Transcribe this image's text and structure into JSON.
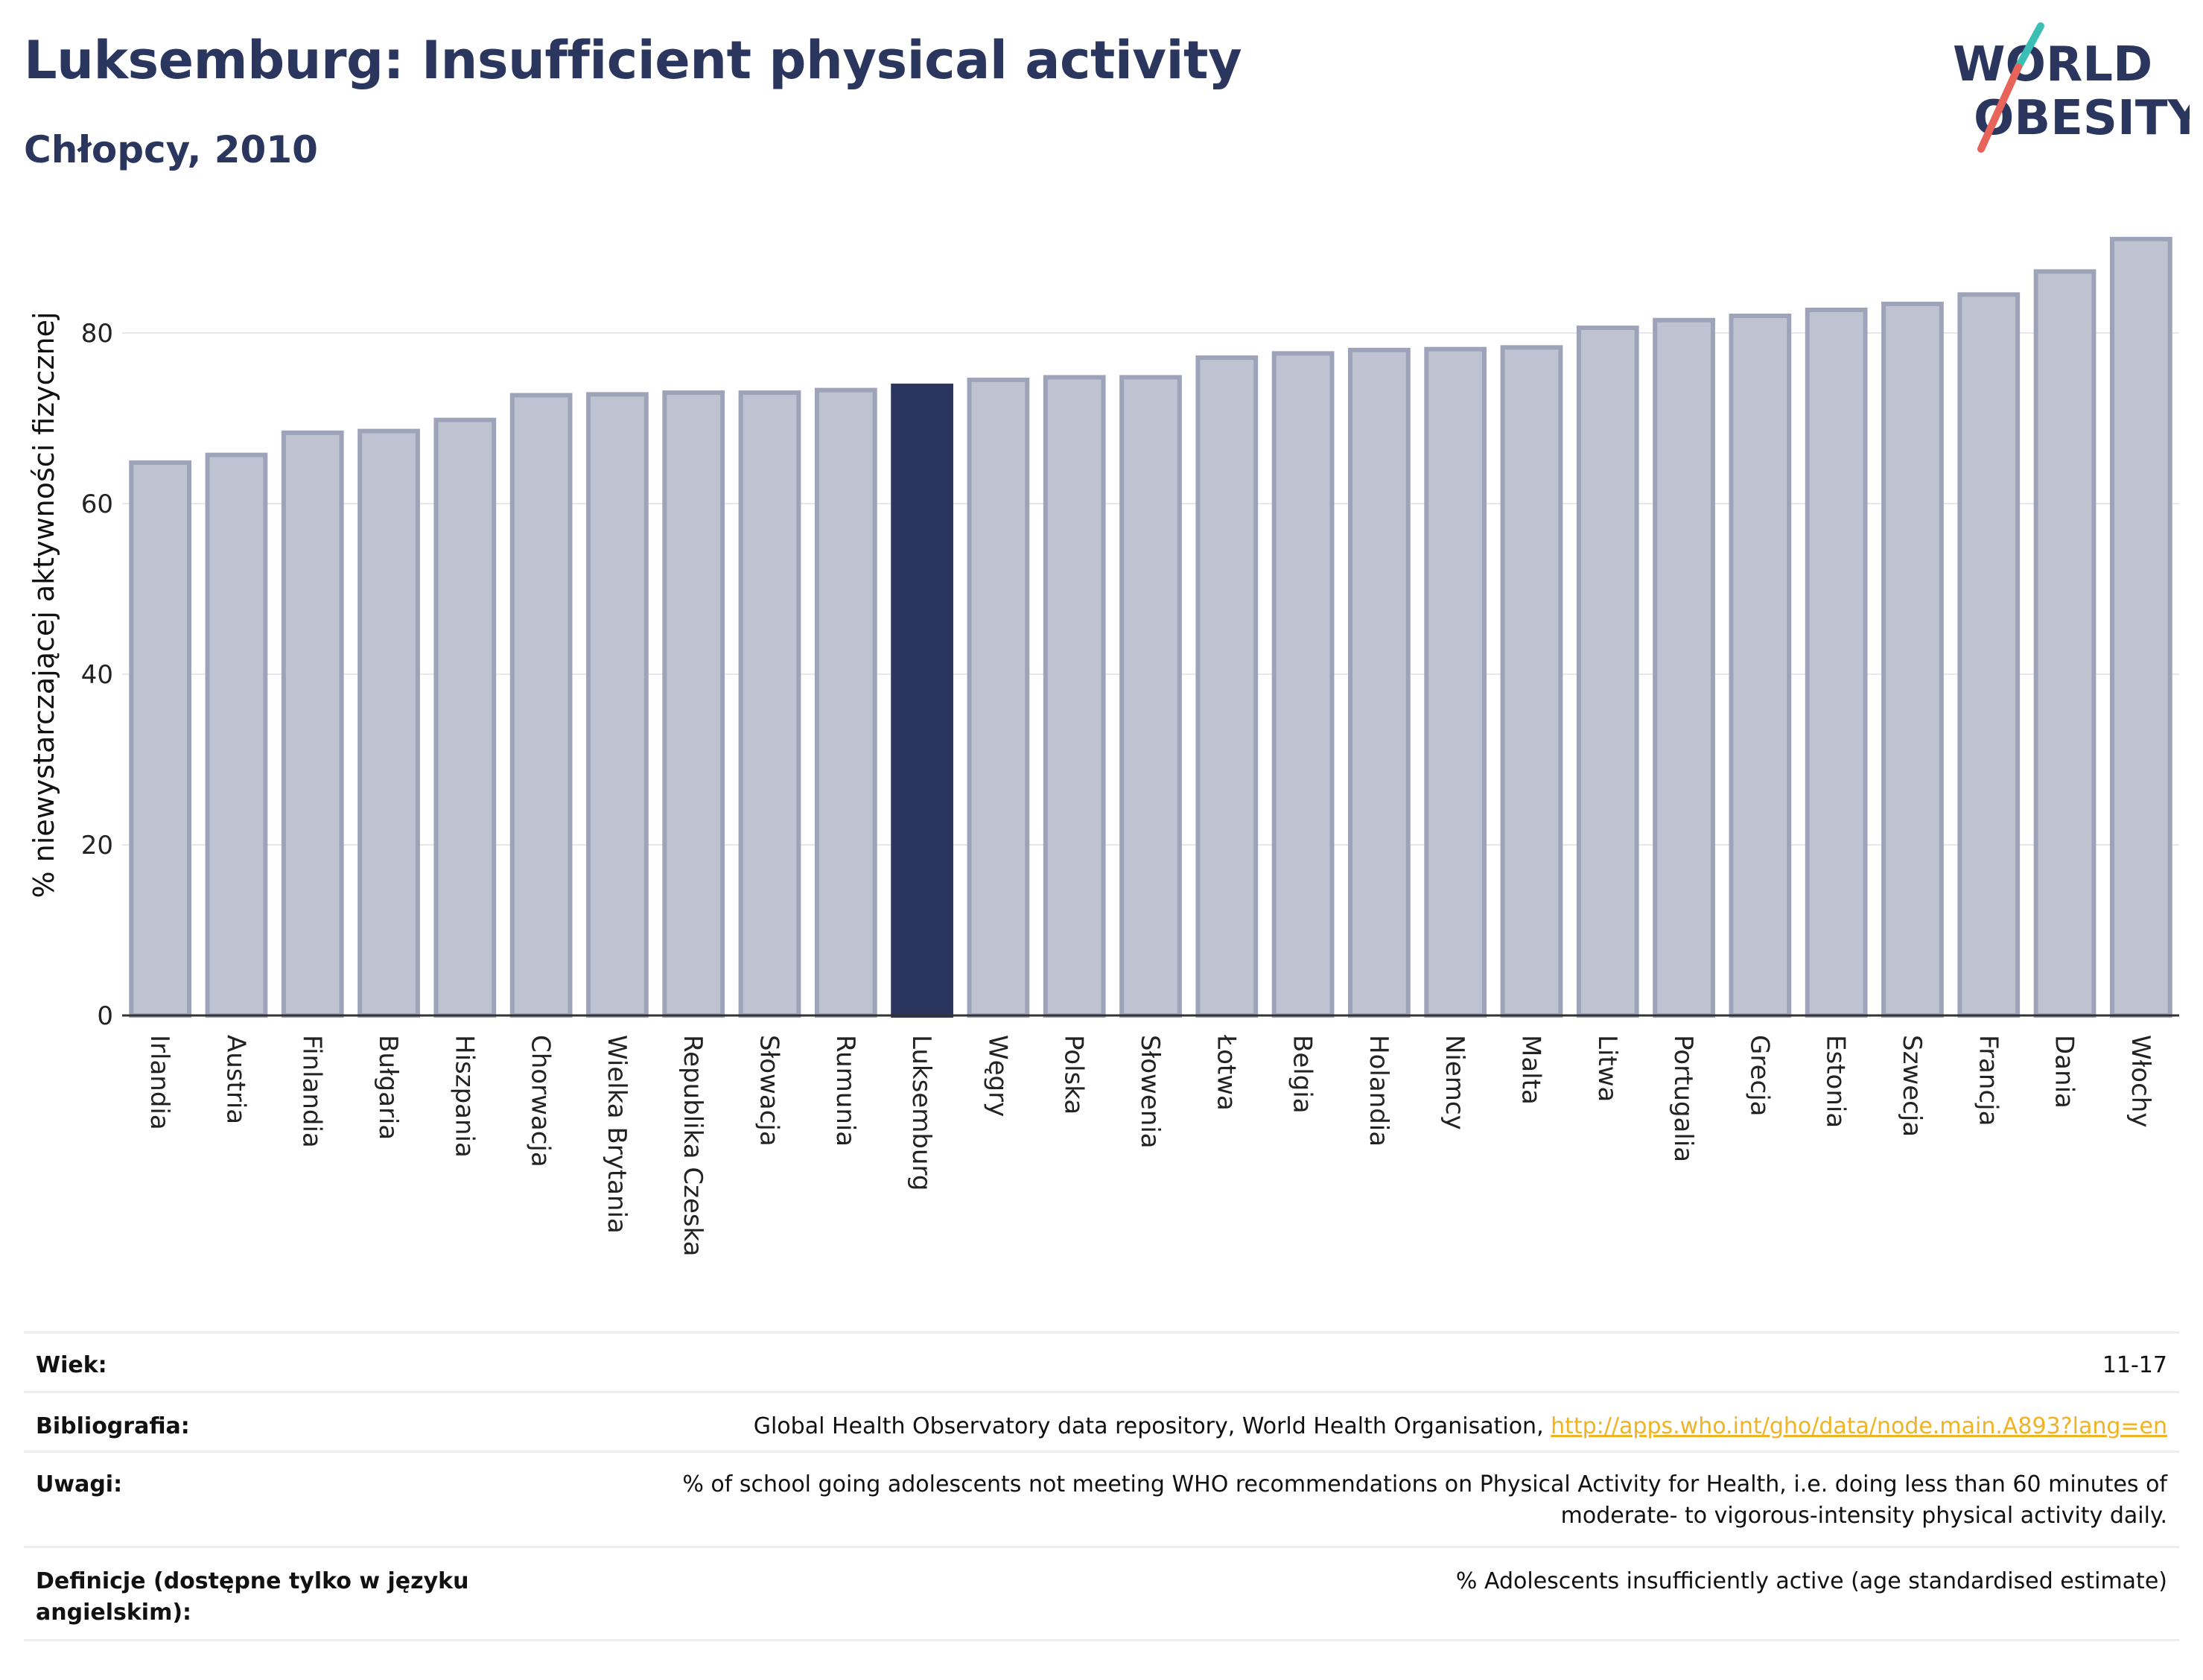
{
  "header": {
    "title": "Luksemburg: Insufficient physical activity",
    "subtitle": "Chłopcy, 2010"
  },
  "logo": {
    "line1": "WORLD",
    "line2": "OBESITY"
  },
  "colors": {
    "bar": "#bfc3d1",
    "bar_stroke": "#9da3b9",
    "highlight": "#2b365f",
    "title": "#2b365f",
    "link": "#f0b323"
  },
  "chart_data": {
    "type": "bar",
    "ylabel": "% niewystarczającej aktywności fizycznej",
    "xlabel": "",
    "ylim": [
      0,
      93
    ],
    "yticks": [
      0,
      20,
      40,
      60,
      80
    ],
    "grid": true,
    "highlight": "Luksemburg",
    "categories": [
      "Irlandia",
      "Austria",
      "Finlandia",
      "Bułgaria",
      "Hiszpania",
      "Chorwacja",
      "Wielka Brytania",
      "Republika Czeska",
      "Słowacja",
      "Rumunia",
      "Luksemburg",
      "Węgry",
      "Polska",
      "Słowenia",
      "Łotwa",
      "Belgia",
      "Holandia",
      "Niemcy",
      "Malta",
      "Litwa",
      "Portugalia",
      "Grecja",
      "Estonia",
      "Szwecja",
      "Francja",
      "Dania",
      "Włochy"
    ],
    "values": [
      64.8,
      65.7,
      68.3,
      68.5,
      69.8,
      72.7,
      72.8,
      73.0,
      73.0,
      73.3,
      73.8,
      74.5,
      74.8,
      74.8,
      77.1,
      77.6,
      78.0,
      78.1,
      78.3,
      80.6,
      81.5,
      82.0,
      82.7,
      83.4,
      84.5,
      87.2,
      91.0
    ]
  },
  "info": {
    "age_label": "Wiek:",
    "age_value": "11-17",
    "bib_label": "Bibliografia:",
    "bib_text": "Global Health Observatory data repository, World Health Organisation, ",
    "bib_link": "http://apps.who.int/gho/data/node.main.A893?lang=en",
    "notes_label": "Uwagi:",
    "notes_line1": "% of school going adolescents not meeting WHO recommendations on Physical Activity for Health, i.e. doing less than 60 minutes of",
    "notes_line2": "moderate- to vigorous-intensity physical activity daily.",
    "def_label_line1": "Definicje (dostępne tylko w języku",
    "def_label_line2": "angielskim):",
    "def_value": "% Adolescents insufficiently active (age standardised estimate)"
  }
}
